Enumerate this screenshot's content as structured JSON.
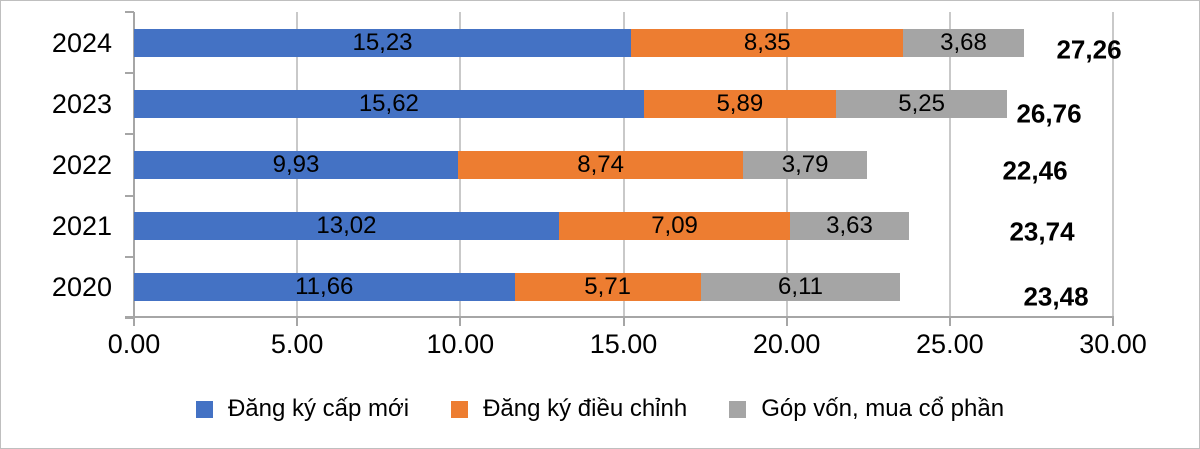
{
  "chart_data": {
    "type": "bar",
    "orientation": "horizontal-stacked",
    "title": "",
    "categories": [
      "2024",
      "2023",
      "2022",
      "2021",
      "2020"
    ],
    "series": [
      {
        "name": "Đăng ký cấp mới",
        "color": "#4472C4",
        "values": [
          15.23,
          15.62,
          9.93,
          13.02,
          11.66
        ],
        "labels": [
          "15,23",
          "15,62",
          "9,93",
          "13,02",
          "11,66"
        ]
      },
      {
        "name": "Đăng ký điều chỉnh",
        "color": "#ED7D31",
        "values": [
          8.35,
          5.89,
          8.74,
          7.09,
          5.71
        ],
        "labels": [
          "8,35",
          "5,89",
          "8,74",
          "7,09",
          "5,71"
        ]
      },
      {
        "name": "Góp vốn, mua cổ phần",
        "color": "#A5A5A5",
        "values": [
          3.68,
          5.25,
          3.79,
          3.63,
          6.11
        ],
        "labels": [
          "3,68",
          "5,25",
          "3,79",
          "3,63",
          "6,11"
        ]
      }
    ],
    "totals": {
      "values": [
        27.26,
        26.76,
        22.46,
        23.74,
        23.48
      ],
      "labels": [
        "27,26",
        "26,76",
        "22,46",
        "23,74",
        "23,48"
      ]
    },
    "x_axis": {
      "min": 0,
      "max": 30,
      "step": 5,
      "ticks": [
        "0.00",
        "5.00",
        "10.00",
        "15.00",
        "20.00",
        "25.00",
        "30.00"
      ]
    },
    "grid": true,
    "legend_position": "bottom",
    "colors": {
      "grid": "#C9C9C9",
      "axis": "#A6A6A6",
      "text": "#000000"
    }
  }
}
